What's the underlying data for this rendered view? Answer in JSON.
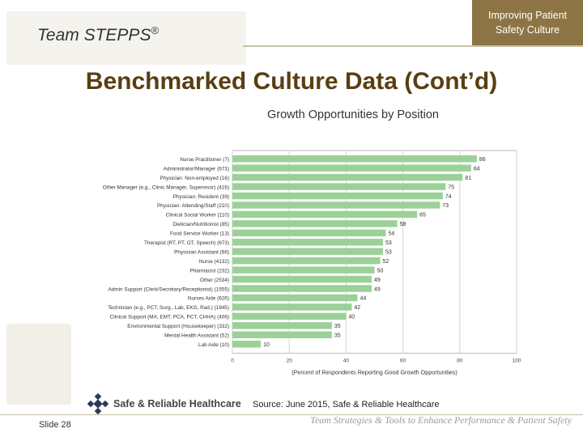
{
  "header": {
    "logo_text": "Team STEPPS",
    "logo_mark": "®",
    "tagline_box": "Improving Patient\nSafety Culture"
  },
  "slide": {
    "title": "Benchmarked Culture Data (Cont’d)"
  },
  "chart_data": {
    "type": "bar",
    "orientation": "horizontal",
    "title": "Growth Opportunities by Position",
    "xlabel": "(Percent of Respondents Reporting Good Growth Opportunities)",
    "ylabel": "",
    "xlim": [
      0,
      100
    ],
    "xticks": [
      0,
      20,
      40,
      60,
      80,
      100
    ],
    "grid": true,
    "bar_color": "#9bd197",
    "categories": [
      "Nurse Practitioner (7)",
      "Administrator/Manager (673)",
      "Physician: Non-employed (16)",
      "Other Manager (e.g., Clinic Manager, Supervisor) (416)",
      "Physician: Resident (39)",
      "Physician: Attending/Staff (210)",
      "Clinical Social Worker (110)",
      "Dietician/Nutritionist (85)",
      "Food Service Worker (13)",
      "Therapist (RT, PT, OT, Speech) (673)",
      "Physician Assistant (66)",
      "Nurse (4132)",
      "Pharmacist (232)",
      "Other (2534)",
      "Admin Support (Clerk/Secretary/Receptionist) (1555)",
      "Nurses Aide (626)",
      "Technician (e.g., PCT, Surg., Lab, EKG, Rad.) (1945)",
      "Clinical Support (MA, EMT, PCA, PCT, CHHA) (406)",
      "Environmental Support (Housekeeper) (332)",
      "Mental Health Assistant (52)",
      "Lab Aide (10)"
    ],
    "values": [
      86,
      84,
      81,
      75,
      74,
      73,
      65,
      58,
      54,
      53,
      53,
      52,
      50,
      49,
      49,
      44,
      42,
      40,
      35,
      35,
      10
    ]
  },
  "footer": {
    "brand": "Safe & Reliable Healthcare",
    "source": "Source: June 2015, Safe & Reliable Healthcare",
    "slide_number": "Slide 28",
    "tagline": "Team Strategies & Tools to Enhance Performance & Patient Safety"
  }
}
